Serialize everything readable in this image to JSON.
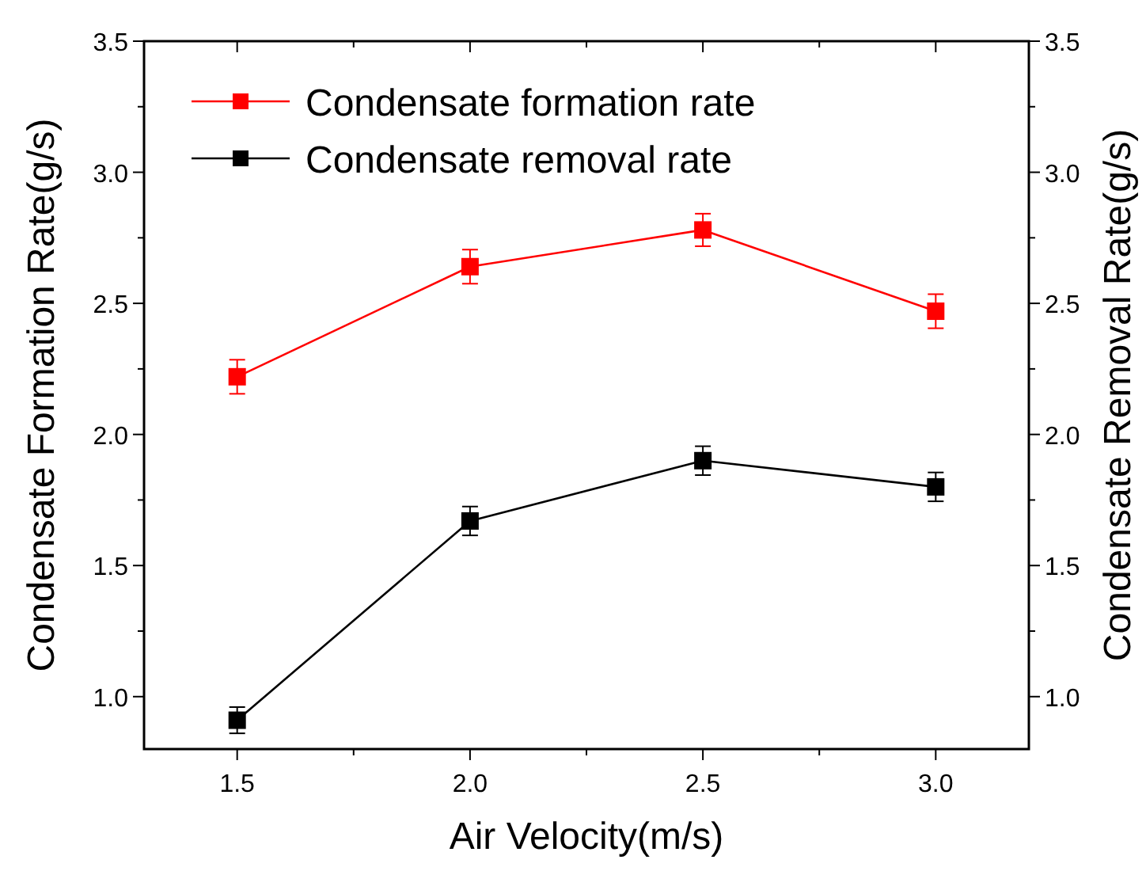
{
  "chart_data": {
    "type": "line",
    "xlabel": "Air Velocity(m/s)",
    "ylabel": "Condensate Formation Rate(g/s)",
    "y2label": "Condensate Removal Rate(g/s)",
    "x": [
      1.5,
      2.0,
      2.5,
      3.0
    ],
    "series": [
      {
        "name": "Condensate formation rate",
        "color": "#ff0000",
        "values": [
          2.22,
          2.64,
          2.78,
          2.47
        ],
        "errors": [
          0.065,
          0.065,
          0.062,
          0.065
        ]
      },
      {
        "name": "Condensate removal rate",
        "color": "#000000",
        "values": [
          0.91,
          1.67,
          1.9,
          1.8
        ],
        "errors": [
          0.05,
          0.055,
          0.055,
          0.055
        ]
      }
    ],
    "xlim": [
      1.3,
      3.2
    ],
    "xticks": [
      1.5,
      {
        "value": 2,
        "label": "2.0"
      },
      2.5,
      {
        "value": 3,
        "label": "3.0"
      }
    ],
    "ylim": [
      0.8,
      3.5
    ],
    "yticks": [
      {
        "value": 1,
        "label": "1.0"
      },
      {
        "value": 1.5,
        "label": "1.5"
      },
      {
        "value": 2,
        "label": "2.0"
      },
      {
        "value": 2.5,
        "label": "2.5"
      },
      {
        "value": 3,
        "label": "3.0"
      },
      {
        "value": 3.5,
        "label": "3.5"
      }
    ],
    "y2lim": [
      0.8,
      3.5
    ],
    "y2ticks": [
      {
        "value": 1,
        "label": "1.0"
      },
      {
        "value": 1.5,
        "label": "1.5"
      },
      {
        "value": 2,
        "label": "2.0"
      },
      {
        "value": 2.5,
        "label": "2.5"
      },
      {
        "value": 3,
        "label": "3.0"
      },
      {
        "value": 3.5,
        "label": "3.5"
      }
    ],
    "legend": "top left",
    "marker": "square",
    "line_style": "solid",
    "grid": false
  }
}
